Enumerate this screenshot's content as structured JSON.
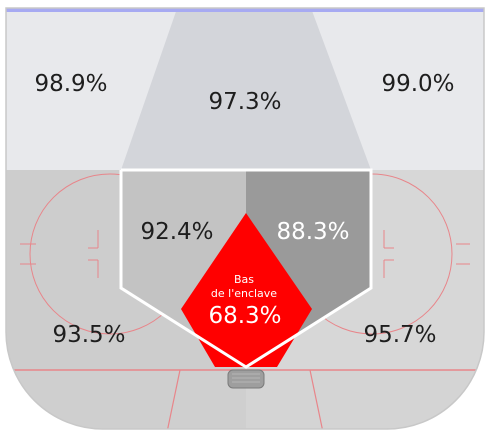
{
  "chart_data": {
    "type": "heatmap",
    "zones": [
      {
        "id": "upper-left",
        "value": "98.9%"
      },
      {
        "id": "upper-slot",
        "value": "97.3%"
      },
      {
        "id": "upper-right",
        "value": "99.0%"
      },
      {
        "id": "inner-left",
        "value": "92.4%"
      },
      {
        "id": "inner-right",
        "value": "88.3%"
      },
      {
        "id": "low-slot",
        "title": [
          "Bas",
          "de l'enclave"
        ],
        "value": "68.3%"
      },
      {
        "id": "lower-left",
        "value": "93.5%"
      },
      {
        "id": "lower-right",
        "value": "95.7%"
      }
    ]
  },
  "colors": {
    "low_slot": "#ff0000",
    "inner_right": "#9a9a9a",
    "inner_left": "#c3c3c3",
    "upper_zones": "#e8e9ec",
    "upper_slot": "#d3d5da",
    "lower_zones": "#cfcfcf",
    "blue_line": "#a7aaf2",
    "rink_lines": "#e8858a"
  }
}
